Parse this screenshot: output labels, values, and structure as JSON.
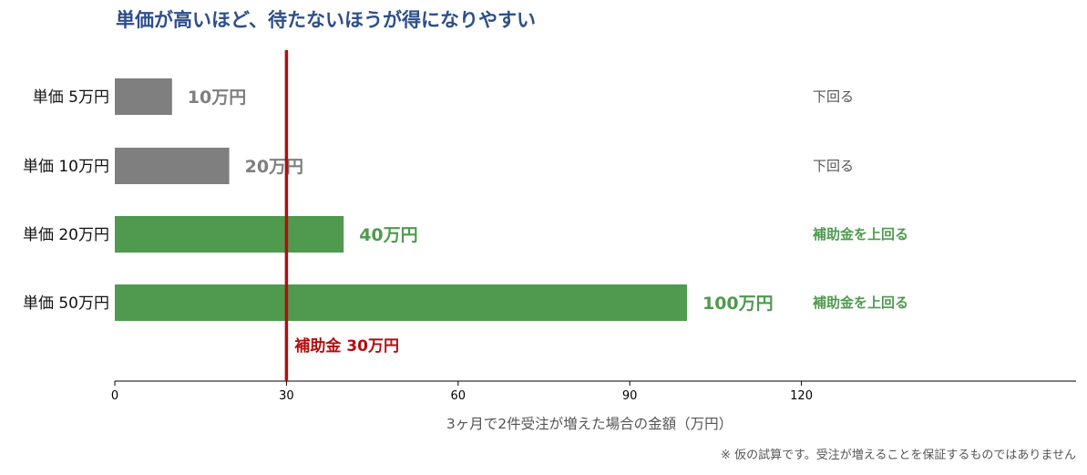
{
  "chart_data": {
    "type": "bar",
    "orientation": "horizontal",
    "title": "単価が高いほど、待たないほうが得になりやすい",
    "xlabel": "3ヶ月で2件受注が増えた場合の金額（万円）",
    "ylabel": "",
    "xlim": [
      0,
      168
    ],
    "xticks": [
      0,
      30,
      60,
      90,
      120
    ],
    "grid": false,
    "categories": [
      "単価 5万円",
      "単価 10万円",
      "単価 20万円",
      "単価 50万円"
    ],
    "values": [
      10,
      20,
      40,
      100
    ],
    "value_labels": [
      "10万円",
      "20万円",
      "40万円",
      "100万円"
    ],
    "comparison_labels": [
      "下回る",
      "下回る",
      "補助金を上回る",
      "補助金を上回る"
    ],
    "reference_line": {
      "value": 30,
      "label": "補助金 30万円"
    },
    "footnote": "※ 仮の試算です。受注が増えることを保証するものではありません"
  },
  "colors": {
    "title": "#2e4f8a",
    "below": "#7f7f7f",
    "above": "#4f9a4f",
    "reference": "#b30e0e",
    "axis": "#000000",
    "axis_label": "#555555",
    "category_text": "#111111",
    "footnote": "#555555"
  }
}
